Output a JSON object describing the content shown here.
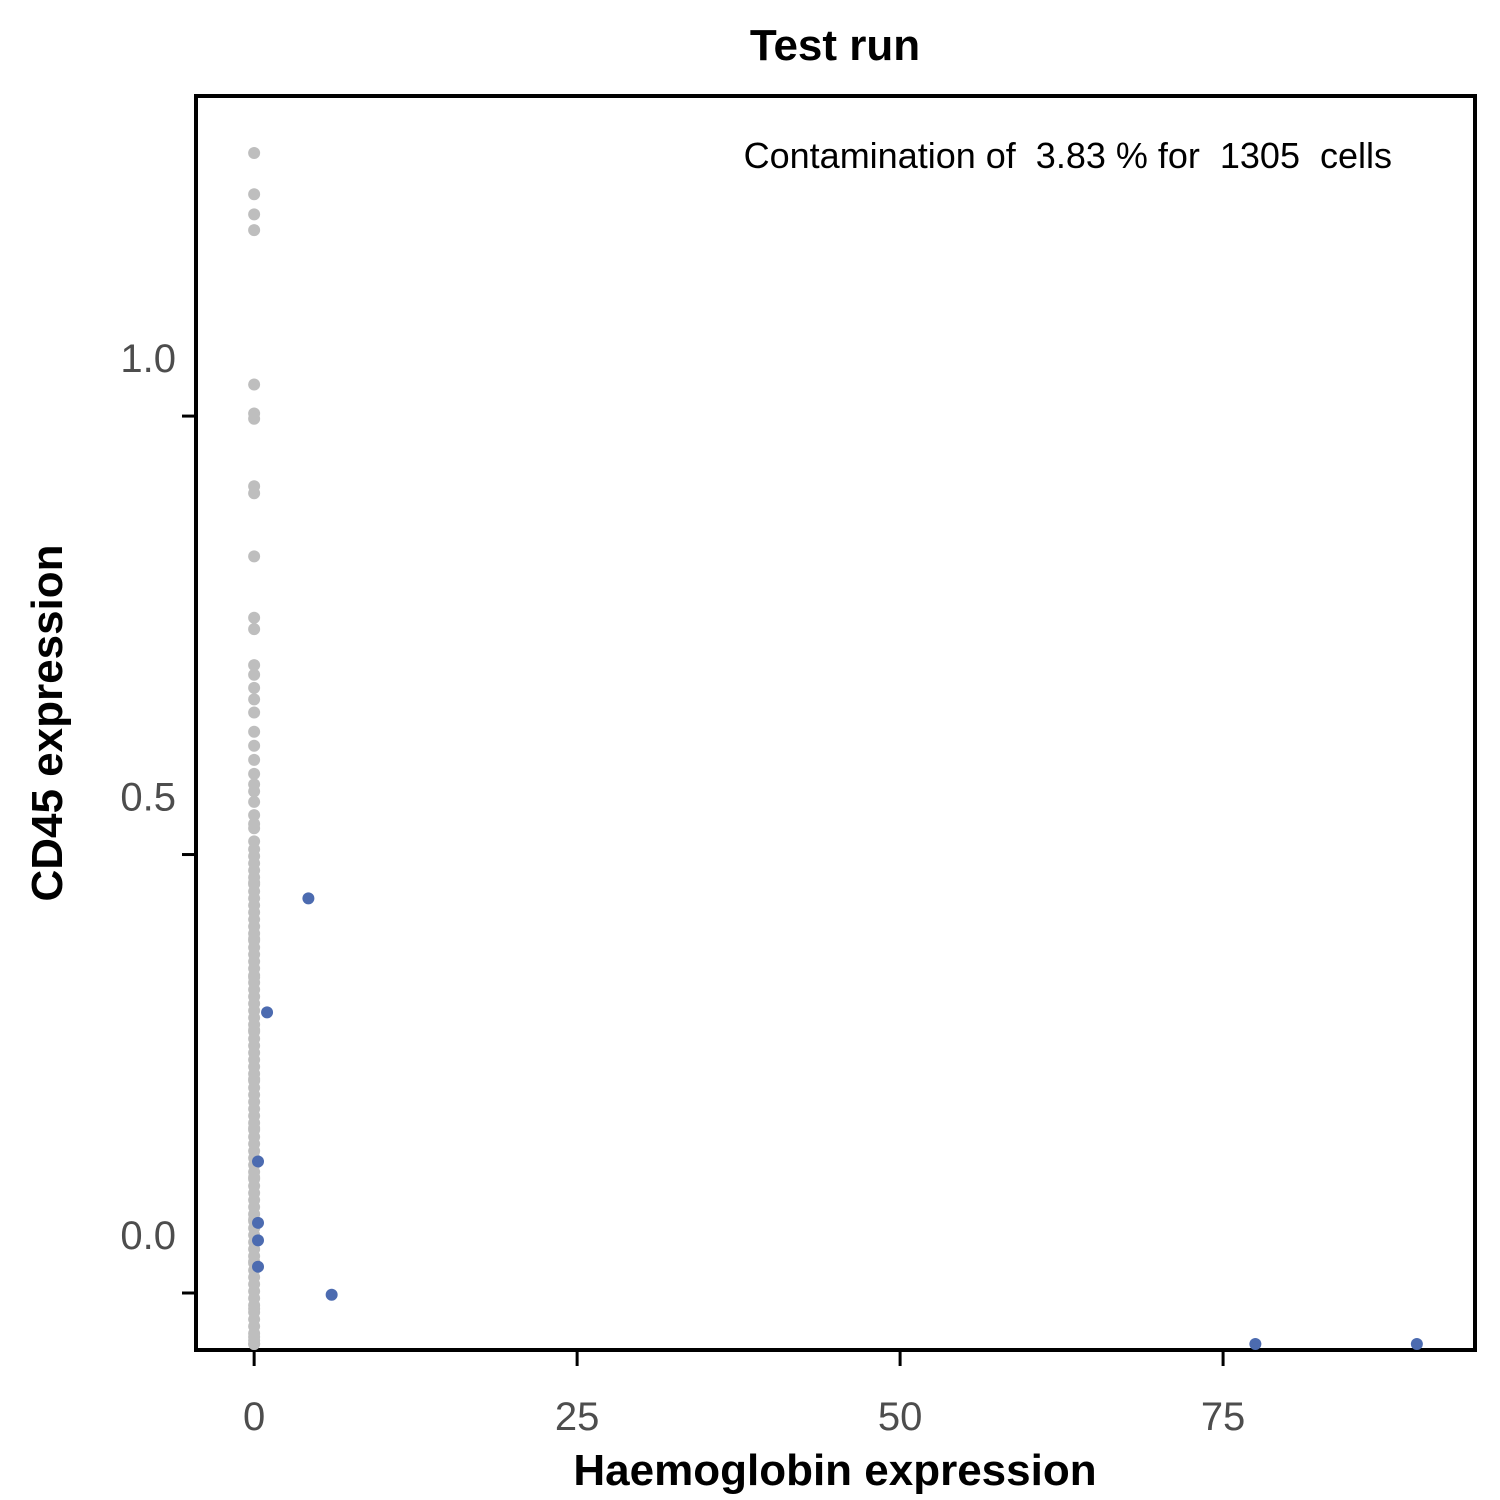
{
  "chart_data": {
    "type": "scatter",
    "title": "Test run",
    "xlabel": "Haemoglobin expression",
    "ylabel": "CD45 expression",
    "annotation": "Contamination of  3.83 % for  1305  cells",
    "xlim": [
      -4.5,
      94.5
    ],
    "ylim": [
      -0.065,
      1.365
    ],
    "x_ticks": [
      0,
      25,
      50,
      75
    ],
    "x_tick_labels": [
      "0",
      "25",
      "50",
      "75"
    ],
    "y_ticks": [
      0.0,
      0.5,
      1.0
    ],
    "y_tick_labels": [
      "0.0",
      "0.5",
      "1.0"
    ],
    "grid": false,
    "legend": "none",
    "colors": {
      "background": "#ffffff",
      "axis": "#000000",
      "tick_label": "#4d4d4d",
      "not_contaminated": "#bebebe",
      "contaminated": "#4c6bb0"
    },
    "series": [
      {
        "color": "#bebebe",
        "x": [
          0,
          0,
          0,
          0,
          0,
          0,
          0,
          0,
          0,
          0,
          0,
          0,
          0,
          0,
          0,
          0,
          0,
          0,
          0,
          0,
          0,
          0,
          0,
          0,
          0,
          0,
          0,
          0,
          0,
          0,
          0,
          0,
          0,
          0,
          0,
          0,
          0,
          0,
          0,
          0,
          0,
          0,
          0,
          0,
          0,
          0,
          0,
          0,
          0,
          0,
          0,
          0,
          0,
          0,
          0,
          0,
          0,
          0,
          0,
          0,
          0,
          0,
          0,
          0,
          0,
          0,
          0,
          0,
          0,
          0,
          0,
          0,
          0,
          0,
          0,
          0,
          0,
          0,
          0,
          0,
          0,
          0,
          0,
          0,
          0,
          0,
          0,
          0,
          0,
          0,
          0,
          0,
          0,
          0,
          0,
          0,
          0,
          0,
          0,
          0,
          0,
          0,
          0,
          0,
          0,
          0,
          0,
          0,
          0,
          0,
          0,
          0
        ],
        "y": [
          1.3,
          1.253,
          1.23,
          1.212,
          1.036,
          1.003,
          0.997,
          0.92,
          0.912,
          0.84,
          0.77,
          0.757,
          0.716,
          0.705,
          0.69,
          0.677,
          0.662,
          0.64,
          0.624,
          0.608,
          0.592,
          0.58,
          0.572,
          0.56,
          0.545,
          0.53,
          0.515,
          0.506,
          0.498,
          0.49,
          0.482,
          0.474,
          0.466,
          0.458,
          0.45,
          0.442,
          0.434,
          0.426,
          0.418,
          0.41,
          0.402,
          0.394,
          0.386,
          0.378,
          0.37,
          0.362,
          0.354,
          0.346,
          0.338,
          0.33,
          0.322,
          0.314,
          0.306,
          0.298,
          0.29,
          0.282,
          0.274,
          0.266,
          0.258,
          0.25,
          0.242,
          0.234,
          0.226,
          0.218,
          0.21,
          0.202,
          0.194,
          0.186,
          0.178,
          0.17,
          0.162,
          0.154,
          0.146,
          0.138,
          0.13,
          0.122,
          0.114,
          0.106,
          0.098,
          0.09,
          0.082,
          0.074,
          0.066,
          0.058,
          0.05,
          0.042,
          0.034,
          0.026,
          0.018,
          0.01,
          0.002,
          -0.006,
          -0.014,
          -0.022,
          -0.03,
          -0.038,
          -0.046,
          -0.054,
          -0.062,
          0.535,
          0.468,
          0.404,
          0.36,
          0.3,
          0.244,
          0.188,
          0.132,
          0.084,
          0.036,
          -0.018,
          -0.05,
          -0.06
        ]
      },
      {
        "color": "#4c6bb0",
        "x": [
          4.2,
          1.0,
          6.0,
          77.5,
          90.0,
          0.3,
          0.3,
          0.3,
          0.3
        ],
        "y": [
          0.45,
          0.32,
          -0.002,
          -0.068,
          -0.068,
          0.15,
          0.08,
          0.06,
          0.03
        ]
      }
    ]
  }
}
